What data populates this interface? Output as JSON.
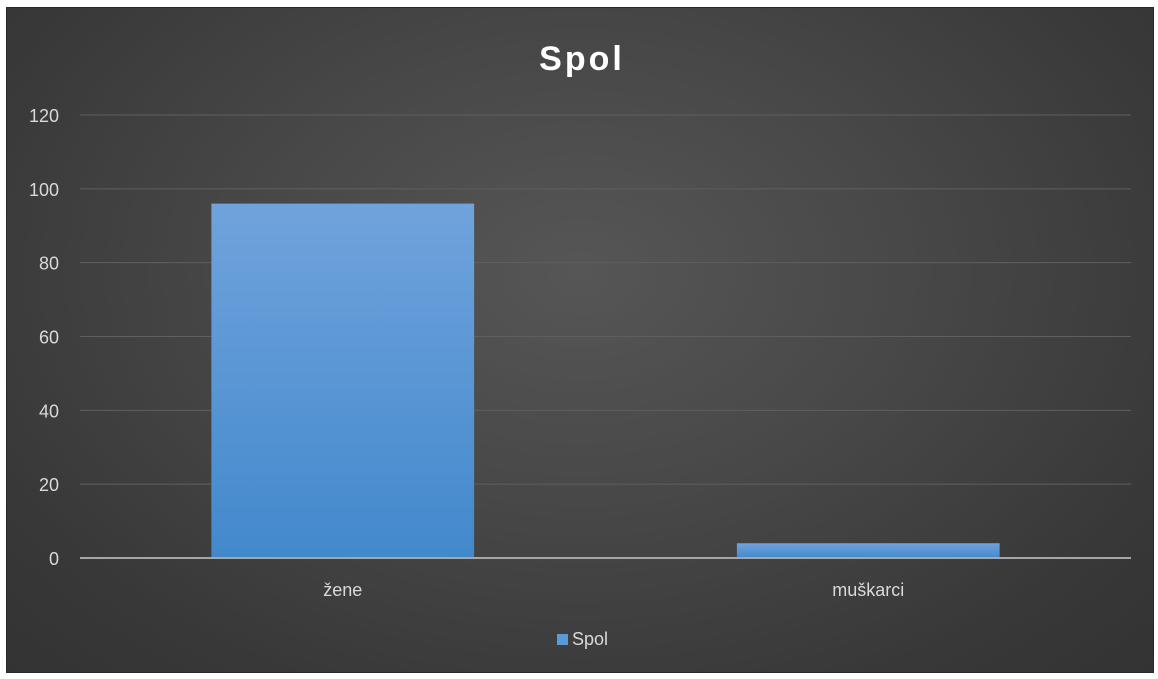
{
  "chart_data": {
    "type": "bar",
    "title": "Spol",
    "categories": [
      "žene",
      "muškarci"
    ],
    "series": [
      {
        "name": "Spol",
        "values": [
          96,
          4
        ]
      }
    ],
    "ylim": [
      0,
      120
    ],
    "yticks": [
      0,
      20,
      40,
      60,
      80,
      100,
      120
    ],
    "grid": true,
    "legend_position": "bottom",
    "colors": {
      "bar_top": "#70a3dc",
      "bar_bottom": "#4289cc",
      "legend_swatch": "#5b9bd5",
      "text": "#d9d9d9",
      "title": "#ffffff",
      "grid": "#5f5f5f",
      "axis": "#a6a6a6"
    }
  }
}
